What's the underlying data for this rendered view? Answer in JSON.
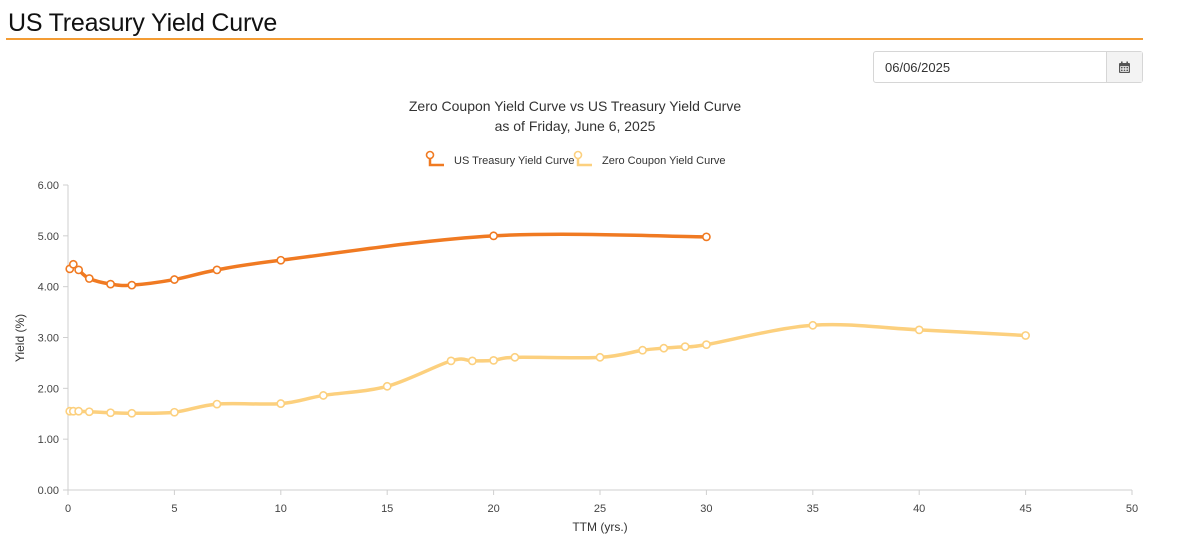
{
  "page": {
    "title": "US Treasury Yield Curve"
  },
  "date_picker": {
    "value": "06/06/2025",
    "icon": "calendar-icon"
  },
  "chart_data": {
    "type": "line",
    "title": "Zero Coupon Yield Curve vs US Treasury Yield Curve",
    "subtitle": "as of Friday, June 6, 2025",
    "xlabel": "TTM (yrs.)",
    "ylabel": "Yield (%)",
    "xlim": [
      0,
      50
    ],
    "ylim": [
      0,
      6
    ],
    "x_ticks": [
      0,
      5,
      10,
      15,
      20,
      25,
      30,
      35,
      40,
      45,
      50
    ],
    "y_ticks": [
      0,
      1,
      2,
      3,
      4,
      5,
      6
    ],
    "grid": false,
    "legend_position": "top-center",
    "series": [
      {
        "name": "US Treasury Yield Curve",
        "color": "#f07a22",
        "x": [
          0.083,
          0.25,
          0.5,
          1,
          2,
          3,
          5,
          7,
          10,
          20,
          30
        ],
        "y": [
          4.35,
          4.44,
          4.33,
          4.16,
          4.05,
          4.03,
          4.14,
          4.33,
          4.52,
          5.0,
          4.98
        ]
      },
      {
        "name": "Zero Coupon Yield Curve",
        "color": "#fcd07e",
        "x": [
          0.083,
          0.25,
          0.5,
          1,
          2,
          3,
          5,
          7,
          10,
          12,
          15,
          18,
          19,
          20,
          21,
          25,
          27,
          28,
          29,
          30,
          35,
          40,
          45
        ],
        "y": [
          1.55,
          1.55,
          1.55,
          1.54,
          1.52,
          1.51,
          1.53,
          1.69,
          1.7,
          1.86,
          2.04,
          2.54,
          2.54,
          2.55,
          2.61,
          2.61,
          2.75,
          2.79,
          2.82,
          2.86,
          3.24,
          3.15,
          3.04
        ]
      }
    ]
  }
}
